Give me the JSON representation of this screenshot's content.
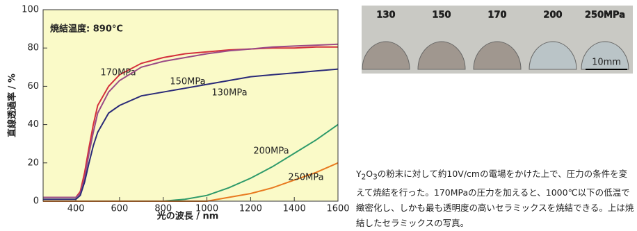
{
  "chart_data": {
    "type": "line",
    "annotation": "焼結温度: 890°C",
    "xlabel": "光の波長 / nm",
    "ylabel": "直線透過率 / %",
    "x": [
      250,
      300,
      350,
      400,
      420,
      440,
      460,
      480,
      500,
      550,
      600,
      700,
      800,
      900,
      1000,
      1100,
      1200,
      1300,
      1400,
      1500,
      1600
    ],
    "xlim": [
      250,
      1600
    ],
    "xticks": [
      400,
      600,
      800,
      1000,
      1200,
      1400,
      1600
    ],
    "ylim": [
      0,
      100
    ],
    "yticks": [
      0,
      20,
      40,
      60,
      80,
      100
    ],
    "background": "#fafac8",
    "series": [
      {
        "name": "170MPa",
        "color": "#d4303c",
        "values": [
          2,
          2,
          2,
          2,
          5,
          15,
          28,
          40,
          50,
          60,
          66,
          72,
          75,
          77,
          78,
          79,
          79.5,
          80,
          80,
          80.5,
          80.5
        ]
      },
      {
        "name": "150MPa",
        "color": "#9a4a86",
        "values": [
          2,
          2,
          2,
          2,
          4,
          12,
          25,
          36,
          46,
          57,
          63,
          70,
          73,
          75,
          77,
          78.5,
          79.5,
          80.5,
          81,
          81.5,
          82
        ]
      },
      {
        "name": "130MPa",
        "color": "#2a2a78",
        "values": [
          1,
          1,
          1,
          1,
          3,
          10,
          20,
          29,
          36,
          46,
          50,
          55,
          57,
          59,
          61,
          63,
          65,
          66,
          67,
          68,
          69
        ]
      },
      {
        "name": "200MPa",
        "color": "#2e9a6a",
        "values": [
          0,
          0,
          0,
          0,
          0,
          0,
          0,
          0,
          0,
          0,
          0,
          0,
          0,
          1,
          3,
          7,
          12,
          18,
          25,
          32,
          40
        ]
      },
      {
        "name": "250MPa",
        "color": "#e87a20",
        "values": [
          0,
          0,
          0,
          0,
          0,
          0,
          0,
          0,
          0,
          0,
          0,
          0,
          0,
          0,
          0,
          2,
          4,
          7,
          11,
          15,
          20
        ]
      }
    ]
  },
  "photo": {
    "labels": [
      "130",
      "150",
      "170",
      "200",
      "250MPa"
    ],
    "scale": "10mm"
  },
  "caption": [
    "Y",
    "2",
    "O",
    "3",
    "の粉末に対して約10V/cmの電場をかけた上で、圧力の条件を変えて焼結を行った。170MPaの圧力を加えると、1000℃以下の低温で緻密化し、しかも最も透明度の高いセラミックスを焼結できる。上は焼結したセラミックスの写真。"
  ]
}
